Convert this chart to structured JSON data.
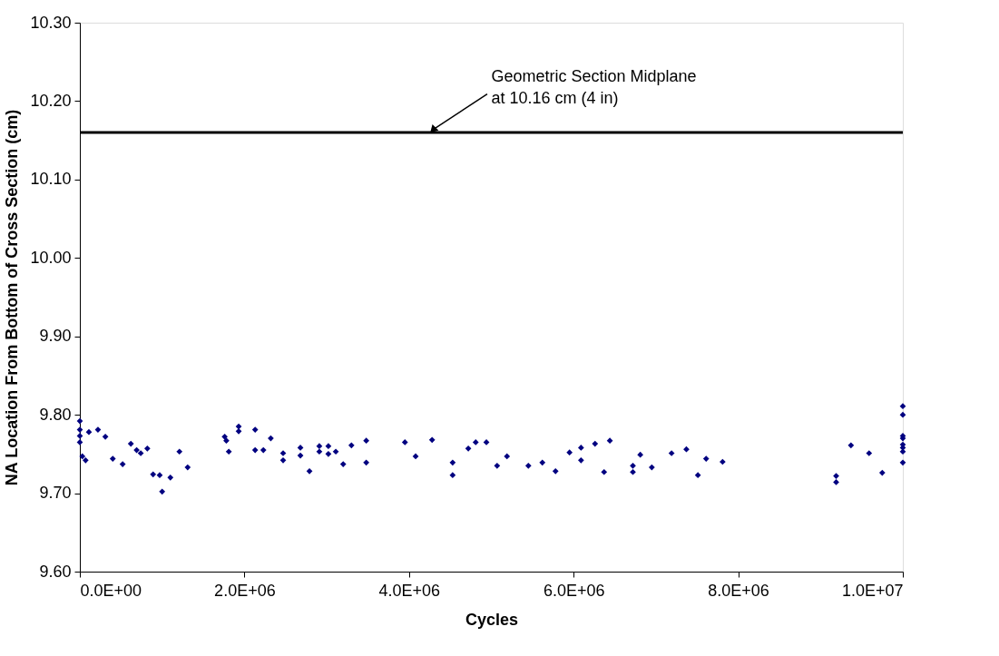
{
  "chart_data": {
    "type": "scatter",
    "xlabel": "Cycles",
    "ylabel": "NA Location From Bottom of Cross Section (cm)",
    "xlim": [
      0,
      10000000
    ],
    "ylim": [
      9.6,
      10.3
    ],
    "xticks": [
      {
        "value": 0,
        "label": "0.0E+00"
      },
      {
        "value": 2000000,
        "label": "2.0E+06"
      },
      {
        "value": 4000000,
        "label": "4.0E+06"
      },
      {
        "value": 6000000,
        "label": "6.0E+06"
      },
      {
        "value": 8000000,
        "label": "8.0E+06"
      },
      {
        "value": 10000000,
        "label": "1.0E+07"
      }
    ],
    "yticks": [
      {
        "value": 9.6,
        "label": "9.60"
      },
      {
        "value": 9.7,
        "label": "9.70"
      },
      {
        "value": 9.8,
        "label": "9.80"
      },
      {
        "value": 9.9,
        "label": "9.90"
      },
      {
        "value": 10.0,
        "label": "10.00"
      },
      {
        "value": 10.1,
        "label": "10.10"
      },
      {
        "value": 10.2,
        "label": "10.20"
      },
      {
        "value": 10.3,
        "label": "10.30"
      }
    ],
    "grid": false,
    "marker": "diamond",
    "ref_lines": [
      {
        "axis": "y",
        "value": 10.16,
        "label": "Geometric Section Midplane\nat 10.16 cm (4 in)",
        "color": "#000000"
      }
    ],
    "series": [
      {
        "color": "#000080",
        "x": [
          0,
          0,
          0,
          0,
          30000,
          70000,
          110000,
          220000,
          310000,
          400000,
          520000,
          620000,
          690000,
          740000,
          820000,
          890000,
          970000,
          1000000,
          1100000,
          1210000,
          1310000,
          1760000,
          1780000,
          1810000,
          1930000,
          1930000,
          2130000,
          2130000,
          2230000,
          2320000,
          2470000,
          2470000,
          2680000,
          2680000,
          2790000,
          2910000,
          2910000,
          3020000,
          3020000,
          3110000,
          3200000,
          3300000,
          3480000,
          3480000,
          3950000,
          4080000,
          4280000,
          4530000,
          4530000,
          4720000,
          4810000,
          4940000,
          5070000,
          5190000,
          5450000,
          5620000,
          5780000,
          5950000,
          6090000,
          6090000,
          6260000,
          6370000,
          6440000,
          6720000,
          6720000,
          6810000,
          6950000,
          7190000,
          7370000,
          7510000,
          7610000,
          7810000,
          9190000,
          9190000,
          9370000,
          9590000,
          9750000,
          10000000,
          10000000,
          10000000,
          10000000,
          10000000,
          10000000,
          10000000,
          10000000
        ],
        "values": [
          9.792,
          9.781,
          9.773,
          9.765,
          9.747,
          9.742,
          9.778,
          9.781,
          9.772,
          9.744,
          9.737,
          9.763,
          9.755,
          9.751,
          9.757,
          9.724,
          9.723,
          9.702,
          9.72,
          9.753,
          9.733,
          9.772,
          9.767,
          9.753,
          9.785,
          9.779,
          9.781,
          9.755,
          9.755,
          9.77,
          9.751,
          9.742,
          9.758,
          9.748,
          9.728,
          9.76,
          9.753,
          9.76,
          9.75,
          9.753,
          9.737,
          9.761,
          9.767,
          9.739,
          9.765,
          9.747,
          9.768,
          9.739,
          9.723,
          9.757,
          9.765,
          9.765,
          9.735,
          9.747,
          9.735,
          9.739,
          9.728,
          9.752,
          9.758,
          9.742,
          9.763,
          9.727,
          9.767,
          9.735,
          9.727,
          9.749,
          9.733,
          9.751,
          9.756,
          9.723,
          9.744,
          9.74,
          9.722,
          9.714,
          9.761,
          9.751,
          9.726,
          9.811,
          9.8,
          9.773,
          9.77,
          9.762,
          9.758,
          9.753,
          9.739
        ]
      }
    ]
  }
}
